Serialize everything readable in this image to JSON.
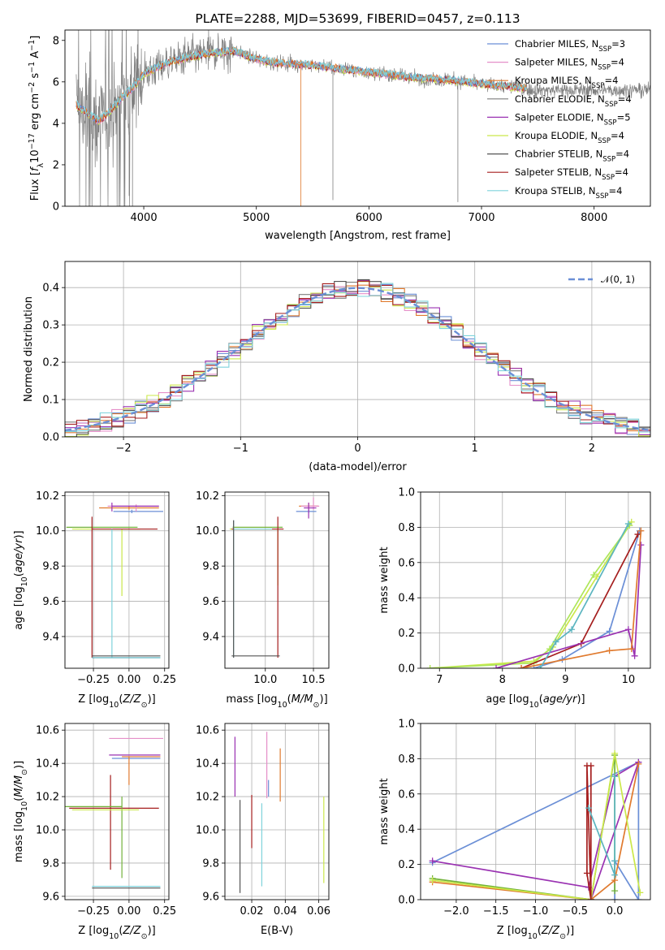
{
  "colors": {
    "royalblue": "#6b8fd6",
    "pink": "#e58fc9",
    "orange": "#e07a2e",
    "grey": "#7f7f7f",
    "purple": "#9a32b2",
    "yellowgreen": "#cbe84a",
    "dimgrey": "#555555",
    "darkred": "#a51e1e",
    "cyan": "#7fd3dc",
    "green": "#72b23a",
    "lightgreen": "#aee65a",
    "teal": "#5cb5c0",
    "grid": "#b0b0b0"
  },
  "chart_data": [
    {
      "id": "spectrum",
      "type": "line",
      "title": "PLATE=2288, MJD=53699, FIBERID=0457, z=0.113",
      "xlabel": "wavelength [Angstrom, rest frame]",
      "ylabel": "Flux [f_λ 10^{-17} erg cm^{-2} s^{-1} A^{-1}]",
      "xlim": [
        3300,
        8500
      ],
      "ylim": [
        0,
        8.5
      ],
      "xticks": [
        "4000",
        "5000",
        "6000",
        "7000",
        "8000"
      ],
      "yticks": [
        "0",
        "2",
        "4",
        "6",
        "8"
      ],
      "legend_position": "upper-right",
      "legend": [
        {
          "label": "Chabrier MILES, N",
          "sub": "SSP",
          "tail": "=3",
          "color": "royalblue"
        },
        {
          "label": "Salpeter MILES, N",
          "sub": "SSP",
          "tail": "=4",
          "color": "pink"
        },
        {
          "label": "Kroupa MILES, N",
          "sub": "SSP",
          "tail": "=4",
          "color": "orange"
        },
        {
          "label": "Chabrier ELODIE, N",
          "sub": "SSP",
          "tail": "=4",
          "color": "grey"
        },
        {
          "label": "Salpeter ELODIE, N",
          "sub": "SSP",
          "tail": "=5",
          "color": "purple"
        },
        {
          "label": "Kroupa ELODIE, N",
          "sub": "SSP",
          "tail": "=4",
          "color": "yellowgreen"
        },
        {
          "label": "Chabrier STELIB, N",
          "sub": "SSP",
          "tail": "=4",
          "color": "dimgrey"
        },
        {
          "label": "Salpeter STELIB, N",
          "sub": "SSP",
          "tail": "=4",
          "color": "darkred"
        },
        {
          "label": "Kroupa STELIB, N",
          "sub": "SSP",
          "tail": "=4",
          "color": "cyan"
        }
      ],
      "model_continuum": [
        [
          3400,
          4.9
        ],
        [
          3600,
          4.1
        ],
        [
          3700,
          4.6
        ],
        [
          3800,
          5.2
        ],
        [
          3900,
          5.7
        ],
        [
          4000,
          6.4
        ],
        [
          4200,
          6.9
        ],
        [
          4400,
          7.2
        ],
        [
          4600,
          7.4
        ],
        [
          4800,
          7.5
        ],
        [
          5000,
          7.1
        ],
        [
          5200,
          6.9
        ],
        [
          5500,
          6.8
        ],
        [
          5800,
          6.6
        ],
        [
          6100,
          6.4
        ],
        [
          6400,
          6.2
        ],
        [
          6700,
          6.1
        ],
        [
          7000,
          5.9
        ],
        [
          7200,
          5.8
        ],
        [
          7400,
          5.7
        ]
      ],
      "data_range": [
        3400,
        8500
      ],
      "model_range": [
        3400,
        7400
      ]
    },
    {
      "id": "residuals",
      "type": "histogram",
      "xlabel": "(data-model)/error",
      "ylabel": "Normed distribution",
      "xlim": [
        -2.5,
        2.5
      ],
      "ylim": [
        0,
        0.47
      ],
      "xticks": [
        "−2",
        "−1",
        "0",
        "1",
        "2"
      ],
      "yticks": [
        "0.0",
        "0.1",
        "0.2",
        "0.3",
        "0.4"
      ],
      "bin_width": 0.1,
      "reference_curve": {
        "label": "𝒩(0, 1)",
        "mean": 0,
        "sigma": 1,
        "color": "royalblue"
      },
      "series_colors": [
        "royalblue",
        "pink",
        "orange",
        "grey",
        "purple",
        "yellowgreen",
        "dimgrey",
        "darkred",
        "cyan"
      ]
    },
    {
      "id": "age_vs_Z",
      "type": "errorbar",
      "xlabel": "Z [log10(Z/Z⊙)]",
      "ylabel": "age  [log10(age/yr)]",
      "xlim": [
        -0.45,
        0.28
      ],
      "ylim": [
        9.22,
        10.22
      ],
      "xticks": [
        "−0.25",
        "0.00",
        "0.25"
      ],
      "yticks": [
        "9.4",
        "9.6",
        "9.8",
        "10.0",
        "10.2"
      ],
      "points": [
        {
          "x": 0.0,
          "y": 10.13,
          "xerr": [
            0.21,
            0.21
          ],
          "yerr": [
            0.01,
            0.01
          ],
          "color": "orange"
        },
        {
          "x": 0.02,
          "y": 10.11,
          "xerr": [
            0.13,
            0.22
          ],
          "yerr": [
            0.01,
            0.01
          ],
          "color": "royalblue"
        },
        {
          "x": 0.05,
          "y": 10.14,
          "xerr": [
            0.2,
            0.16
          ],
          "yerr": [
            0.03,
            0.01
          ],
          "color": "pink"
        },
        {
          "x": -0.12,
          "y": 10.14,
          "xerr": [
            0.0,
            0.33
          ],
          "yerr": [
            0.03,
            0.02
          ],
          "color": "purple"
        },
        {
          "x": -0.14,
          "y": 10.02,
          "xerr": [
            0.3,
            0.2
          ],
          "yerr": [
            0.0,
            0.0
          ],
          "color": "green"
        },
        {
          "x": -0.05,
          "y": 10.01,
          "xerr": [
            0.35,
            0.13
          ],
          "yerr": [
            0.38,
            0.0
          ],
          "color": "yellowgreen"
        },
        {
          "x": -0.26,
          "y": 10.01,
          "xerr": [
            0.0,
            0.46
          ],
          "yerr": [
            0.73,
            0.07
          ],
          "color": "darkred"
        },
        {
          "x": -0.12,
          "y": 10.01,
          "xerr": [
            0.0,
            0.0
          ],
          "yerr": [
            0.73,
            0.0
          ],
          "color": "cyan"
        },
        {
          "x": -0.03,
          "y": 9.29,
          "xerr": [
            0.23,
            0.25
          ],
          "yerr": [
            0.0,
            0.0
          ],
          "color": "dimgrey"
        },
        {
          "x": -0.03,
          "y": 9.28,
          "xerr": [
            0.23,
            0.25
          ],
          "yerr": [
            0.0,
            0.0
          ],
          "color": "teal"
        }
      ]
    },
    {
      "id": "age_vs_mass",
      "type": "errorbar",
      "xlabel": "mass [log10(M/M⊙)]",
      "ylabel": "",
      "xlim": [
        9.58,
        10.66
      ],
      "ylim": [
        9.22,
        10.22
      ],
      "xticks": [
        "10.0",
        "10.5"
      ],
      "yticks": [
        "9.4",
        "9.6",
        "9.8",
        "10.0",
        "10.2"
      ],
      "points": [
        {
          "x": 10.45,
          "y": 10.14,
          "xerr": [
            0.1,
            0.1
          ],
          "yerr": [
            0.03,
            0.02
          ],
          "color": "orange"
        },
        {
          "x": 10.5,
          "y": 10.14,
          "xerr": [
            0.13,
            0.06
          ],
          "yerr": [
            0.02,
            0.05
          ],
          "color": "pink"
        },
        {
          "x": 10.45,
          "y": 10.11,
          "xerr": [
            0.13,
            0.08
          ],
          "yerr": [
            0.01,
            0.01
          ],
          "color": "royalblue"
        },
        {
          "x": 10.45,
          "y": 10.13,
          "xerr": [
            0.05,
            0.08
          ],
          "yerr": [
            0.06,
            0.03
          ],
          "color": "purple"
        },
        {
          "x": 9.98,
          "y": 10.02,
          "xerr": [
            0.32,
            0.2
          ],
          "yerr": [
            0.0,
            0.0
          ],
          "color": "green"
        },
        {
          "x": 10.13,
          "y": 10.01,
          "xerr": [
            0.5,
            0.0
          ],
          "yerr": [
            0.32,
            0.0
          ],
          "color": "yellowgreen"
        },
        {
          "x": 10.13,
          "y": 10.01,
          "xerr": [
            0.48,
            0.06
          ],
          "yerr": [
            0.73,
            0.07
          ],
          "color": "darkred"
        },
        {
          "x": 9.67,
          "y": 10.01,
          "xerr": [
            0.0,
            0.4
          ],
          "yerr": [
            0.73,
            0.05
          ],
          "color": "cyan"
        },
        {
          "x": 9.9,
          "y": 9.29,
          "xerr": [
            0.25,
            0.25
          ],
          "yerr": [
            0.0,
            0.0
          ],
          "color": "dimgrey"
        },
        {
          "x": 9.67,
          "y": 10.01,
          "xerr": [
            0.0,
            0.0
          ],
          "yerr": [
            0.73,
            0.05
          ],
          "color": "dimgrey"
        }
      ]
    },
    {
      "id": "weight_vs_age",
      "type": "line",
      "xlabel": "age  [log10(age/yr)]",
      "ylabel": "mass weight",
      "xlim": [
        6.7,
        10.35
      ],
      "ylim": [
        0,
        1.0
      ],
      "xticks": [
        "7",
        "8",
        "9",
        "10"
      ],
      "yticks": [
        "0.0",
        "0.2",
        "0.4",
        "0.6",
        "0.8",
        "1.0"
      ],
      "series": [
        {
          "color": "yellowgreen",
          "x": [
            6.85,
            8.5,
            8.8,
            9.5,
            10.05
          ],
          "y": [
            0.0,
            0.04,
            0.12,
            0.52,
            0.83
          ]
        },
        {
          "color": "lightgreen",
          "x": [
            6.85,
            8.5,
            8.75,
            9.45,
            10.02
          ],
          "y": [
            0.0,
            0.03,
            0.11,
            0.53,
            0.81
          ]
        },
        {
          "color": "royalblue",
          "x": [
            8.5,
            8.95,
            9.7,
            10.18
          ],
          "y": [
            0.0,
            0.05,
            0.21,
            0.78
          ]
        },
        {
          "color": "darkred",
          "x": [
            8.3,
            9.25,
            10.15
          ],
          "y": [
            0.0,
            0.14,
            0.76
          ]
        },
        {
          "color": "purple",
          "x": [
            7.9,
            10.0,
            10.1,
            10.2
          ],
          "y": [
            0.0,
            0.22,
            0.07,
            0.7
          ]
        },
        {
          "color": "orange",
          "x": [
            8.3,
            9.7,
            10.05,
            10.2
          ],
          "y": [
            0.0,
            0.1,
            0.11,
            0.78
          ]
        },
        {
          "color": "teal",
          "x": [
            8.6,
            8.85,
            9.1,
            10.0
          ],
          "y": [
            0.0,
            0.15,
            0.22,
            0.82
          ]
        }
      ]
    },
    {
      "id": "mass_vs_Z",
      "type": "errorbar",
      "xlabel": "Z [log10(Z/Z⊙)]",
      "ylabel": "mass [log10(M/M⊙)]",
      "xlim": [
        -0.45,
        0.28
      ],
      "ylim": [
        9.58,
        10.64
      ],
      "xticks": [
        "−0.25",
        "0.00",
        "0.25"
      ],
      "yticks": [
        "9.6",
        "9.8",
        "10.0",
        "10.2",
        "10.4",
        "10.6"
      ],
      "points": [
        {
          "x": 0.05,
          "y": 10.55,
          "xerr": [
            0.19,
            0.19
          ],
          "yerr": [
            0.0,
            0.0
          ],
          "color": "pink"
        },
        {
          "x": 0.06,
          "y": 10.45,
          "xerr": [
            0.2,
            0.16
          ],
          "yerr": [
            0.0,
            0.0
          ],
          "color": "purple"
        },
        {
          "x": 0.02,
          "y": 10.43,
          "xerr": [
            0.14,
            0.2
          ],
          "yerr": [
            0.0,
            0.0
          ],
          "color": "royalblue"
        },
        {
          "x": 0.0,
          "y": 10.44,
          "xerr": [
            0.05,
            0.22
          ],
          "yerr": [
            0.17,
            0.0
          ],
          "color": "orange"
        },
        {
          "x": -0.13,
          "y": 10.13,
          "xerr": [
            0.29,
            0.34
          ],
          "yerr": [
            0.37,
            0.2
          ],
          "color": "darkred"
        },
        {
          "x": -0.05,
          "y": 10.14,
          "xerr": [
            0.4,
            0.0
          ],
          "yerr": [
            0.43,
            0.06
          ],
          "color": "green"
        },
        {
          "x": -0.13,
          "y": 10.12,
          "xerr": [
            0.27,
            0.2
          ],
          "yerr": [
            0.0,
            0.0
          ],
          "color": "yellowgreen"
        },
        {
          "x": -0.03,
          "y": 9.65,
          "xerr": [
            0.23,
            0.25
          ],
          "yerr": [
            0.0,
            0.0
          ],
          "color": "dimgrey"
        },
        {
          "x": -0.03,
          "y": 9.66,
          "xerr": [
            0.23,
            0.25
          ],
          "yerr": [
            0.0,
            0.0
          ],
          "color": "cyan"
        }
      ]
    },
    {
      "id": "mass_vs_ebv",
      "type": "errorbar",
      "xlabel": "E(B-V)",
      "ylabel": "",
      "xlim": [
        0.004,
        0.066
      ],
      "ylim": [
        9.58,
        10.64
      ],
      "xticks": [
        "0.02",
        "0.04",
        "0.06"
      ],
      "yticks": [
        "9.6",
        "9.8",
        "10.0",
        "10.2",
        "10.4",
        "10.6"
      ],
      "points": [
        {
          "x": 0.01,
          "y": 10.38,
          "yerr": [
            0.18,
            0.18
          ],
          "color": "purple"
        },
        {
          "x": 0.013,
          "y": 9.9,
          "yerr": [
            0.28,
            0.28
          ],
          "color": "dimgrey"
        },
        {
          "x": 0.02,
          "y": 10.11,
          "yerr": [
            0.22,
            0.1
          ],
          "color": "darkred"
        },
        {
          "x": 0.026,
          "y": 9.91,
          "yerr": [
            0.25,
            0.25
          ],
          "color": "cyan"
        },
        {
          "x": 0.029,
          "y": 10.39,
          "yerr": [
            0.2,
            0.2
          ],
          "color": "pink"
        },
        {
          "x": 0.03,
          "y": 10.25,
          "yerr": [
            0.05,
            0.05
          ],
          "color": "royalblue"
        },
        {
          "x": 0.037,
          "y": 10.33,
          "yerr": [
            0.16,
            0.16
          ],
          "color": "orange"
        },
        {
          "x": 0.063,
          "y": 9.94,
          "yerr": [
            0.26,
            0.26
          ],
          "color": "yellowgreen"
        }
      ]
    },
    {
      "id": "weight_vs_Z",
      "type": "line",
      "xlabel": "Z [log10(Z/Z⊙)]",
      "ylabel": "mass weight",
      "xlim": [
        -2.45,
        0.45
      ],
      "ylim": [
        0,
        1.0
      ],
      "xticks": [
        "−2.0",
        "−1.5",
        "−1.0",
        "−0.5",
        "0.0"
      ],
      "yticks": [
        "0.0",
        "0.2",
        "0.4",
        "0.6",
        "0.8",
        "1.0"
      ],
      "series": [
        {
          "color": "royalblue",
          "x": [
            -2.3,
            0.3,
            0.3,
            0.0,
            0.0
          ],
          "y": [
            0.21,
            0.78,
            0.0,
            0.22,
            0.0
          ]
        },
        {
          "color": "purple",
          "x": [
            -2.3,
            -0.33,
            0.0,
            0.3,
            -0.3
          ],
          "y": [
            0.22,
            0.07,
            0.7,
            0.78,
            0.0
          ]
        },
        {
          "color": "green",
          "x": [
            -2.3,
            -0.3,
            0.0,
            0.0
          ],
          "y": [
            0.12,
            0.0,
            0.82,
            0.05
          ]
        },
        {
          "color": "orange",
          "x": [
            -2.3,
            -0.3,
            0.0,
            0.3
          ],
          "y": [
            0.1,
            0.0,
            0.11,
            0.77
          ]
        },
        {
          "color": "yellowgreen",
          "x": [
            -2.3,
            -0.3,
            0.0,
            0.32
          ],
          "y": [
            0.11,
            0.0,
            0.83,
            0.04
          ]
        },
        {
          "color": "darkred",
          "x": [
            -0.3,
            -0.3,
            -0.35,
            -0.35,
            -0.3
          ],
          "y": [
            0.76,
            0.0,
            0.15,
            0.76,
            0.0
          ]
        },
        {
          "color": "teal",
          "x": [
            -0.33,
            0.0,
            0.0,
            0.0
          ],
          "y": [
            0.52,
            0.14,
            0.22,
            0.7
          ]
        }
      ]
    }
  ]
}
